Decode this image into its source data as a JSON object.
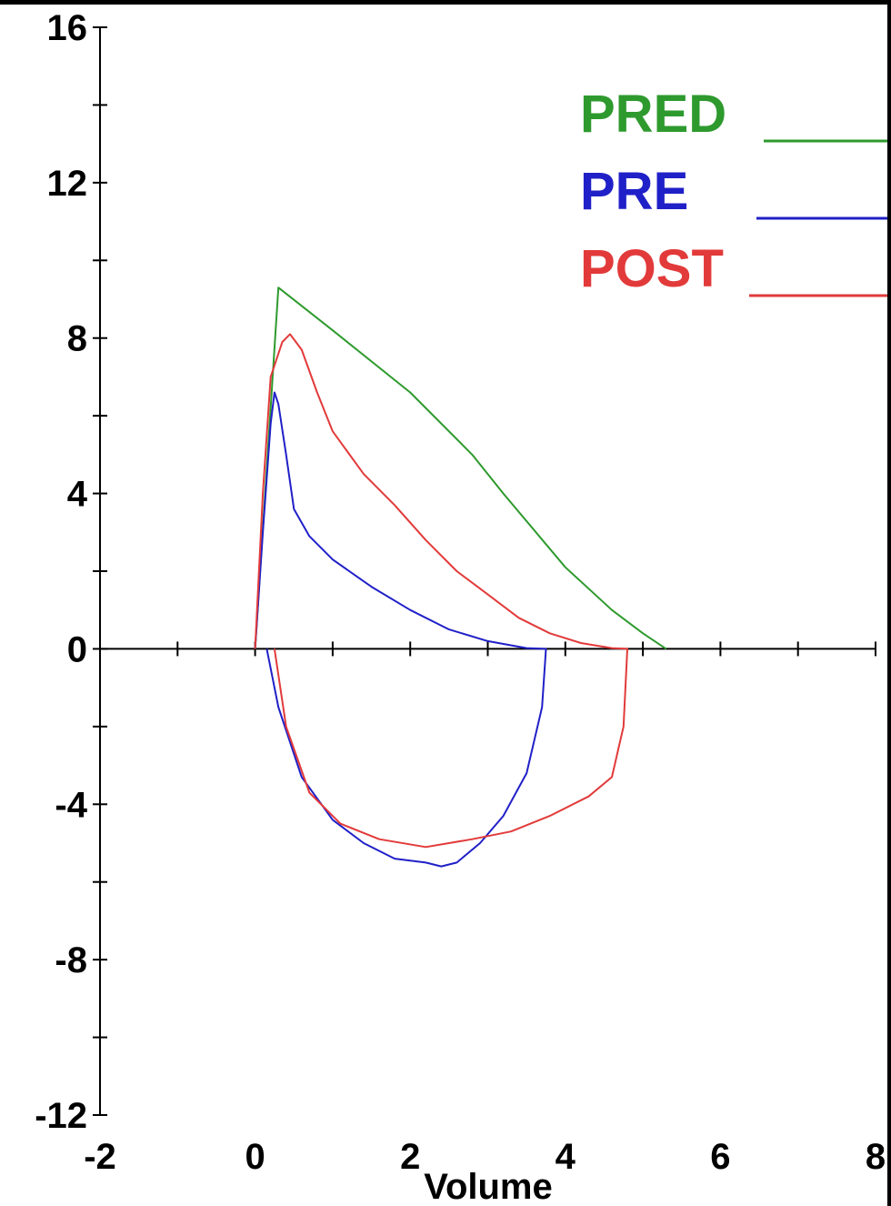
{
  "chart_data": {
    "type": "line",
    "title": "",
    "xlabel": "Volume",
    "ylabel": "",
    "xlim": [
      -2,
      8
    ],
    "ylim": [
      -12,
      16
    ],
    "x_tick_labels": [
      "-2",
      "0",
      "2",
      "4",
      "6",
      "8"
    ],
    "y_tick_labels": [
      "16",
      "12",
      "8",
      "4",
      "0",
      "-4",
      "-8",
      "-12"
    ],
    "grid": false,
    "legend_position": "top-right",
    "series": [
      {
        "name": "PRED",
        "color": "#2e9a2e",
        "points": [
          [
            0.0,
            0.0
          ],
          [
            0.3,
            9.3
          ],
          [
            1.0,
            8.2
          ],
          [
            2.0,
            6.6
          ],
          [
            2.8,
            5.0
          ],
          [
            3.2,
            4.0
          ],
          [
            4.0,
            2.1
          ],
          [
            4.6,
            1.0
          ],
          [
            5.0,
            0.4
          ],
          [
            5.3,
            0.0
          ]
        ]
      },
      {
        "name": "PRE",
        "color": "#2020c8",
        "points": [
          [
            0.0,
            0.0
          ],
          [
            0.1,
            3.0
          ],
          [
            0.2,
            5.8
          ],
          [
            0.25,
            6.6
          ],
          [
            0.3,
            6.3
          ],
          [
            0.4,
            5.0
          ],
          [
            0.5,
            3.6
          ],
          [
            0.7,
            2.9
          ],
          [
            1.0,
            2.3
          ],
          [
            1.5,
            1.6
          ],
          [
            2.0,
            1.0
          ],
          [
            2.5,
            0.5
          ],
          [
            3.0,
            0.2
          ],
          [
            3.5,
            0.02
          ],
          [
            3.75,
            0.0
          ],
          [
            3.7,
            -1.5
          ],
          [
            3.5,
            -3.2
          ],
          [
            3.2,
            -4.3
          ],
          [
            2.9,
            -5.0
          ],
          [
            2.6,
            -5.5
          ],
          [
            2.4,
            -5.6
          ],
          [
            2.2,
            -5.5
          ],
          [
            1.8,
            -5.4
          ],
          [
            1.4,
            -5.0
          ],
          [
            1.0,
            -4.4
          ],
          [
            0.6,
            -3.3
          ],
          [
            0.3,
            -1.5
          ],
          [
            0.15,
            0.0
          ]
        ]
      },
      {
        "name": "POST",
        "color": "#e23a3a",
        "points": [
          [
            0.0,
            0.0
          ],
          [
            0.1,
            4.0
          ],
          [
            0.2,
            7.0
          ],
          [
            0.35,
            7.9
          ],
          [
            0.45,
            8.1
          ],
          [
            0.6,
            7.7
          ],
          [
            0.8,
            6.6
          ],
          [
            1.0,
            5.6
          ],
          [
            1.4,
            4.5
          ],
          [
            1.8,
            3.7
          ],
          [
            2.2,
            2.8
          ],
          [
            2.6,
            2.0
          ],
          [
            3.0,
            1.4
          ],
          [
            3.4,
            0.8
          ],
          [
            3.8,
            0.4
          ],
          [
            4.2,
            0.15
          ],
          [
            4.6,
            0.02
          ],
          [
            4.8,
            0.0
          ],
          [
            4.75,
            -2.0
          ],
          [
            4.6,
            -3.3
          ],
          [
            4.3,
            -3.8
          ],
          [
            3.8,
            -4.3
          ],
          [
            3.3,
            -4.7
          ],
          [
            2.8,
            -4.9
          ],
          [
            2.2,
            -5.1
          ],
          [
            1.6,
            -4.9
          ],
          [
            1.1,
            -4.5
          ],
          [
            0.7,
            -3.7
          ],
          [
            0.4,
            -2.0
          ],
          [
            0.25,
            0.0
          ]
        ]
      }
    ]
  }
}
